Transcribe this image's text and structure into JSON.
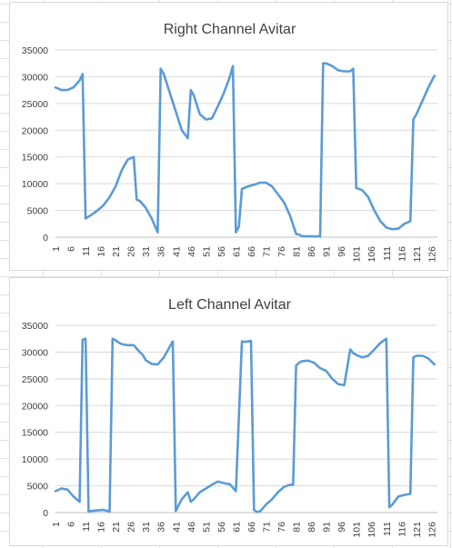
{
  "chart_data": [
    {
      "type": "line",
      "title": "Right Channel Avitar",
      "xlabel": "",
      "ylabel": "",
      "ylim": [
        0,
        35000
      ],
      "yticks": [
        "0",
        "5000",
        "10000",
        "15000",
        "20000",
        "25000",
        "30000",
        "35000"
      ],
      "xticks": [
        "1",
        "6",
        "11",
        "16",
        "21",
        "26",
        "31",
        "36",
        "41",
        "46",
        "51",
        "56",
        "61",
        "66",
        "71",
        "76",
        "81",
        "86",
        "91",
        "96",
        "101",
        "106",
        "111",
        "116",
        "121",
        "126"
      ],
      "grid": true,
      "legend": "none",
      "line_color": "#5b9bd5",
      "x": [
        1,
        3,
        5,
        7,
        9,
        10,
        11,
        13,
        15,
        17,
        19,
        21,
        23,
        25,
        27,
        28,
        29,
        31,
        33,
        35,
        36,
        37,
        39,
        41,
        43,
        45,
        46,
        47,
        49,
        51,
        53,
        55,
        57,
        59,
        60,
        61,
        62,
        63,
        65,
        67,
        69,
        71,
        73,
        75,
        77,
        79,
        81,
        82,
        83,
        85,
        87,
        89,
        90,
        91,
        93,
        95,
        97,
        99,
        100,
        101,
        103,
        105,
        107,
        109,
        111,
        113,
        115,
        117,
        119,
        120,
        121,
        123,
        125,
        127
      ],
      "values": [
        28000,
        27500,
        27500,
        28000,
        29300,
        30500,
        3500,
        4200,
        5000,
        6000,
        7500,
        9500,
        12500,
        14500,
        15000,
        7000,
        6800,
        5500,
        3500,
        900,
        31500,
        30500,
        27000,
        23500,
        20000,
        18500,
        27500,
        26500,
        23000,
        22000,
        22200,
        24500,
        27000,
        30000,
        32000,
        900,
        2000,
        9000,
        9500,
        9800,
        10200,
        10200,
        9500,
        8000,
        6500,
        4000,
        600,
        500,
        200,
        150,
        150,
        150,
        32500,
        32500,
        32000,
        31200,
        31000,
        31000,
        31500,
        9200,
        8800,
        7500,
        5000,
        3000,
        1800,
        1500,
        1600,
        2500,
        3000,
        22000,
        23000,
        25500,
        28000,
        30200
      ]
    },
    {
      "type": "line",
      "title": "Left Channel Avitar",
      "xlabel": "",
      "ylabel": "",
      "ylim": [
        0,
        35000
      ],
      "yticks": [
        "0",
        "5000",
        "10000",
        "15000",
        "20000",
        "25000",
        "30000",
        "35000"
      ],
      "xticks": [
        "1",
        "6",
        "11",
        "16",
        "21",
        "26",
        "31",
        "36",
        "41",
        "46",
        "51",
        "56",
        "61",
        "66",
        "71",
        "76",
        "81",
        "86",
        "91",
        "96",
        "101",
        "106",
        "111",
        "116",
        "121",
        "126"
      ],
      "grid": true,
      "legend": "none",
      "line_color": "#5b9bd5",
      "x": [
        1,
        3,
        5,
        7,
        9,
        10,
        11,
        12,
        13,
        15,
        17,
        19,
        20,
        21,
        22,
        23,
        25,
        27,
        29,
        30,
        31,
        33,
        35,
        37,
        39,
        40,
        41,
        43,
        45,
        46,
        47,
        49,
        51,
        53,
        55,
        57,
        59,
        61,
        63,
        64,
        65,
        66,
        67,
        68,
        69,
        71,
        73,
        75,
        77,
        79,
        80,
        81,
        82,
        83,
        85,
        87,
        89,
        91,
        93,
        95,
        97,
        99,
        100,
        101,
        103,
        105,
        107,
        109,
        111,
        112,
        113,
        115,
        117,
        119,
        120,
        121,
        123,
        125,
        127
      ],
      "values": [
        4000,
        4500,
        4300,
        3000,
        2000,
        32300,
        32500,
        200,
        300,
        400,
        500,
        200,
        32500,
        32200,
        31800,
        31500,
        31300,
        31300,
        30000,
        29500,
        28500,
        27800,
        27700,
        29000,
        31000,
        32000,
        300,
        2500,
        3800,
        2000,
        2500,
        3800,
        4500,
        5200,
        5800,
        5500,
        5300,
        4000,
        32000,
        31900,
        32000,
        32100,
        500,
        100,
        200,
        1500,
        2500,
        3800,
        4800,
        5200,
        5200,
        27500,
        28000,
        28300,
        28400,
        28000,
        27000,
        26500,
        25000,
        24000,
        23800,
        30500,
        29800,
        29500,
        29000,
        29300,
        30500,
        31700,
        32500,
        1000,
        1500,
        3000,
        3300,
        3500,
        29000,
        29300,
        29300,
        28800,
        27700
      ]
    }
  ]
}
